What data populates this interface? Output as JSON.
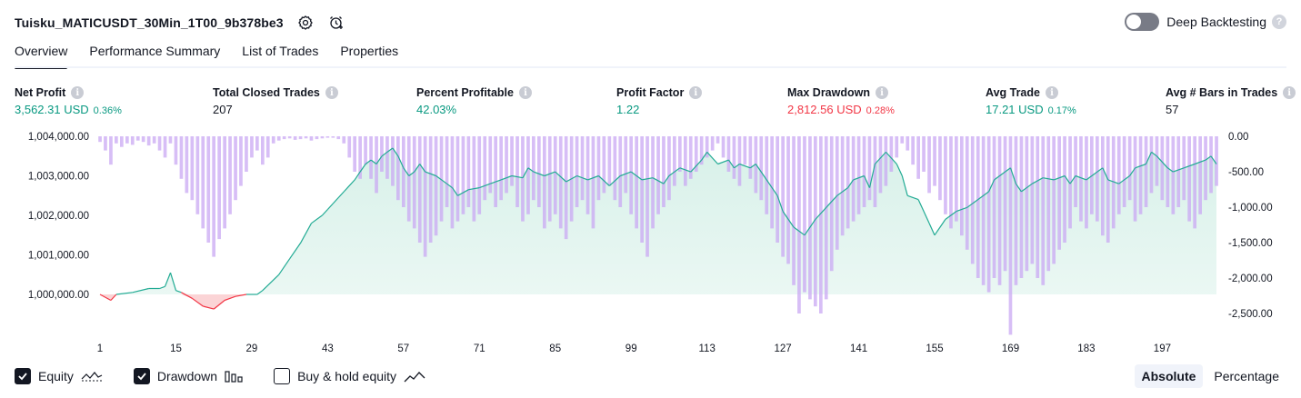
{
  "header": {
    "title": "Tuisku_MATICUSDT_30Min_1T00_9b378be3",
    "deep_backtesting_label": "Deep Backtesting",
    "help_glyph": "?"
  },
  "tabs": [
    {
      "label": "Overview",
      "active": true
    },
    {
      "label": "Performance Summary",
      "active": false
    },
    {
      "label": "List of Trades",
      "active": false
    },
    {
      "label": "Properties",
      "active": false
    }
  ],
  "metrics": [
    {
      "label": "Net Profit",
      "value": "3,562.31 USD",
      "pct": "0.36%",
      "color": "green"
    },
    {
      "label": "Total Closed Trades",
      "value": "207",
      "pct": "",
      "color": "dark"
    },
    {
      "label": "Percent Profitable",
      "value": "42.03%",
      "pct": "",
      "color": "green"
    },
    {
      "label": "Profit Factor",
      "value": "1.22",
      "pct": "",
      "color": "green"
    },
    {
      "label": "Max Drawdown",
      "value": "2,812.56 USD",
      "pct": "0.28%",
      "color": "red"
    },
    {
      "label": "Avg Trade",
      "value": "17.21 USD",
      "pct": "0.17%",
      "color": "green"
    },
    {
      "label": "Avg # Bars in Trades",
      "value": "57",
      "pct": "",
      "color": "dark"
    }
  ],
  "info_glyph": "i",
  "chart_data": {
    "type": "area",
    "x_ticks": [
      "1",
      "15",
      "29",
      "43",
      "57",
      "71",
      "85",
      "99",
      "113",
      "127",
      "141",
      "155",
      "169",
      "183",
      "197"
    ],
    "left_axis": {
      "ticks": [
        "1,004,000.00",
        "1,003,000.00",
        "1,002,000.00",
        "1,001,000.00",
        "1,000,000.00"
      ],
      "range": [
        999400,
        1004000
      ]
    },
    "right_axis": {
      "ticks": [
        "0.00",
        "-500.00",
        "-1,000.00",
        "-1,500.00",
        "-2,000.00",
        "-2,500.00"
      ],
      "range": [
        -2800,
        0
      ]
    },
    "equity_points": [
      [
        1,
        1000000
      ],
      [
        3,
        999850
      ],
      [
        4,
        1000000
      ],
      [
        7,
        1000050
      ],
      [
        10,
        1000150
      ],
      [
        12,
        1000150
      ],
      [
        13,
        1000200
      ],
      [
        14,
        1000550
      ],
      [
        15,
        1000100
      ],
      [
        16,
        1000050
      ],
      [
        18,
        999900
      ],
      [
        20,
        999700
      ],
      [
        22,
        999630
      ],
      [
        24,
        999850
      ],
      [
        26,
        999950
      ],
      [
        28,
        1000000
      ],
      [
        30,
        1000000
      ],
      [
        31,
        1000100
      ],
      [
        34,
        1000500
      ],
      [
        36,
        1000900
      ],
      [
        38,
        1001300
      ],
      [
        40,
        1001800
      ],
      [
        42,
        1002000
      ],
      [
        43,
        1002150
      ],
      [
        44,
        1002300
      ],
      [
        46,
        1002600
      ],
      [
        48,
        1002900
      ],
      [
        49,
        1003100
      ],
      [
        50,
        1003300
      ],
      [
        51,
        1003400
      ],
      [
        52,
        1003300
      ],
      [
        53,
        1003500
      ],
      [
        54,
        1003600
      ],
      [
        55,
        1003700
      ],
      [
        56,
        1003500
      ],
      [
        57,
        1003200
      ],
      [
        58,
        1003000
      ],
      [
        59,
        1003100
      ],
      [
        60,
        1003300
      ],
      [
        61,
        1003100
      ],
      [
        63,
        1003000
      ],
      [
        65,
        1002800
      ],
      [
        66,
        1002700
      ],
      [
        67,
        1002500
      ],
      [
        69,
        1002650
      ],
      [
        71,
        1002700
      ],
      [
        73,
        1002800
      ],
      [
        75,
        1002900
      ],
      [
        77,
        1003000
      ],
      [
        79,
        1002950
      ],
      [
        80,
        1003200
      ],
      [
        81,
        1003100
      ],
      [
        83,
        1003000
      ],
      [
        85,
        1003100
      ],
      [
        87,
        1002850
      ],
      [
        89,
        1003000
      ],
      [
        91,
        1002900
      ],
      [
        93,
        1003000
      ],
      [
        95,
        1002750
      ],
      [
        97,
        1003000
      ],
      [
        99,
        1003100
      ],
      [
        101,
        1002900
      ],
      [
        103,
        1002950
      ],
      [
        105,
        1002800
      ],
      [
        106,
        1003000
      ],
      [
        108,
        1003200
      ],
      [
        110,
        1003100
      ],
      [
        112,
        1003400
      ],
      [
        113,
        1003600
      ],
      [
        115,
        1003300
      ],
      [
        117,
        1003400
      ],
      [
        118,
        1003200
      ],
      [
        119,
        1003300
      ],
      [
        121,
        1003200
      ],
      [
        122,
        1003300
      ],
      [
        124,
        1002900
      ],
      [
        126,
        1002500
      ],
      [
        127,
        1002100
      ],
      [
        129,
        1001700
      ],
      [
        131,
        1001500
      ],
      [
        133,
        1001900
      ],
      [
        135,
        1002200
      ],
      [
        137,
        1002500
      ],
      [
        139,
        1002700
      ],
      [
        140,
        1002900
      ],
      [
        142,
        1003000
      ],
      [
        143,
        1002700
      ],
      [
        144,
        1003300
      ],
      [
        146,
        1003600
      ],
      [
        148,
        1003300
      ],
      [
        149,
        1003000
      ],
      [
        150,
        1002500
      ],
      [
        152,
        1002400
      ],
      [
        154,
        1001800
      ],
      [
        155,
        1001500
      ],
      [
        157,
        1001900
      ],
      [
        159,
        1002100
      ],
      [
        161,
        1002200
      ],
      [
        163,
        1002400
      ],
      [
        165,
        1002600
      ],
      [
        166,
        1002900
      ],
      [
        168,
        1003100
      ],
      [
        169,
        1003200
      ],
      [
        170,
        1002800
      ],
      [
        171,
        1002600
      ],
      [
        173,
        1002800
      ],
      [
        175,
        1002950
      ],
      [
        177,
        1002900
      ],
      [
        179,
        1003000
      ],
      [
        180,
        1002800
      ],
      [
        181,
        1003000
      ],
      [
        183,
        1002900
      ],
      [
        185,
        1003100
      ],
      [
        186,
        1003200
      ],
      [
        187,
        1002900
      ],
      [
        189,
        1002800
      ],
      [
        191,
        1003000
      ],
      [
        192,
        1003200
      ],
      [
        194,
        1003300
      ],
      [
        195,
        1003600
      ],
      [
        196,
        1003500
      ],
      [
        198,
        1003200
      ],
      [
        199,
        1003100
      ],
      [
        201,
        1003200
      ],
      [
        203,
        1003300
      ],
      [
        205,
        1003400
      ],
      [
        206,
        1003500
      ],
      [
        207,
        1003300
      ]
    ],
    "drawdown_points": [
      [
        1,
        -80
      ],
      [
        2,
        -200
      ],
      [
        3,
        -400
      ],
      [
        4,
        -100
      ],
      [
        5,
        -150
      ],
      [
        6,
        -100
      ],
      [
        7,
        -120
      ],
      [
        8,
        -60
      ],
      [
        9,
        -80
      ],
      [
        10,
        -130
      ],
      [
        11,
        -100
      ],
      [
        12,
        -200
      ],
      [
        13,
        -300
      ],
      [
        14,
        -100
      ],
      [
        15,
        -400
      ],
      [
        16,
        -600
      ],
      [
        17,
        -800
      ],
      [
        18,
        -900
      ],
      [
        19,
        -1100
      ],
      [
        20,
        -1300
      ],
      [
        21,
        -1500
      ],
      [
        22,
        -1700
      ],
      [
        23,
        -1450
      ],
      [
        24,
        -1300
      ],
      [
        25,
        -1100
      ],
      [
        26,
        -900
      ],
      [
        27,
        -700
      ],
      [
        28,
        -500
      ],
      [
        29,
        -300
      ],
      [
        30,
        -200
      ],
      [
        31,
        -400
      ],
      [
        32,
        -300
      ],
      [
        33,
        -100
      ],
      [
        34,
        -60
      ],
      [
        35,
        -40
      ],
      [
        36,
        -30
      ],
      [
        37,
        -50
      ],
      [
        38,
        -40
      ],
      [
        39,
        -30
      ],
      [
        40,
        -60
      ],
      [
        41,
        -40
      ],
      [
        42,
        -30
      ],
      [
        43,
        -20
      ],
      [
        44,
        -20
      ],
      [
        45,
        -40
      ],
      [
        46,
        -100
      ],
      [
        47,
        -300
      ],
      [
        48,
        -500
      ],
      [
        49,
        -600
      ],
      [
        50,
        -400
      ],
      [
        51,
        -600
      ],
      [
        52,
        -800
      ],
      [
        53,
        -500
      ],
      [
        54,
        -600
      ],
      [
        55,
        -700
      ],
      [
        56,
        -900
      ],
      [
        57,
        -1000
      ],
      [
        58,
        -1200
      ],
      [
        59,
        -1300
      ],
      [
        60,
        -1500
      ],
      [
        61,
        -1700
      ],
      [
        62,
        -1500
      ],
      [
        63,
        -1400
      ],
      [
        64,
        -1200
      ],
      [
        65,
        -1000
      ],
      [
        66,
        -1300
      ],
      [
        67,
        -1200
      ],
      [
        68,
        -1100
      ],
      [
        69,
        -1000
      ],
      [
        70,
        -1200
      ],
      [
        71,
        -1100
      ],
      [
        72,
        -900
      ],
      [
        73,
        -800
      ],
      [
        74,
        -1000
      ],
      [
        75,
        -900
      ],
      [
        76,
        -800
      ],
      [
        77,
        -700
      ],
      [
        78,
        -1000
      ],
      [
        79,
        -1200
      ],
      [
        80,
        -1100
      ],
      [
        81,
        -900
      ],
      [
        82,
        -1000
      ],
      [
        83,
        -1300
      ],
      [
        84,
        -1200
      ],
      [
        85,
        -1100
      ],
      [
        86,
        -1300
      ],
      [
        87,
        -1450
      ],
      [
        88,
        -1200
      ],
      [
        89,
        -1000
      ],
      [
        90,
        -900
      ],
      [
        91,
        -1100
      ],
      [
        92,
        -1300
      ],
      [
        93,
        -900
      ],
      [
        94,
        -800
      ],
      [
        95,
        -700
      ],
      [
        96,
        -900
      ],
      [
        97,
        -1000
      ],
      [
        98,
        -800
      ],
      [
        99,
        -1100
      ],
      [
        100,
        -1300
      ],
      [
        101,
        -1500
      ],
      [
        102,
        -1700
      ],
      [
        103,
        -1300
      ],
      [
        104,
        -1100
      ],
      [
        105,
        -1000
      ],
      [
        106,
        -900
      ],
      [
        107,
        -700
      ],
      [
        108,
        -500
      ],
      [
        109,
        -700
      ],
      [
        110,
        -600
      ],
      [
        111,
        -500
      ],
      [
        112,
        -400
      ],
      [
        113,
        -300
      ],
      [
        114,
        -200
      ],
      [
        115,
        -100
      ],
      [
        116,
        -300
      ],
      [
        117,
        -500
      ],
      [
        118,
        -600
      ],
      [
        119,
        -700
      ],
      [
        120,
        -400
      ],
      [
        121,
        -600
      ],
      [
        122,
        -800
      ],
      [
        123,
        -900
      ],
      [
        124,
        -1100
      ],
      [
        125,
        -1300
      ],
      [
        126,
        -1500
      ],
      [
        127,
        -1700
      ],
      [
        128,
        -1800
      ],
      [
        129,
        -2100
      ],
      [
        130,
        -2500
      ],
      [
        131,
        -2200
      ],
      [
        132,
        -2300
      ],
      [
        133,
        -2400
      ],
      [
        134,
        -2500
      ],
      [
        135,
        -2300
      ],
      [
        136,
        -1900
      ],
      [
        137,
        -1600
      ],
      [
        138,
        -1400
      ],
      [
        139,
        -1300
      ],
      [
        140,
        -1200
      ],
      [
        141,
        -1100
      ],
      [
        142,
        -1000
      ],
      [
        143,
        -900
      ],
      [
        144,
        -1000
      ],
      [
        145,
        -800
      ],
      [
        146,
        -700
      ],
      [
        147,
        -500
      ],
      [
        148,
        -300
      ],
      [
        149,
        -100
      ],
      [
        150,
        -200
      ],
      [
        151,
        -400
      ],
      [
        152,
        -600
      ],
      [
        153,
        -500
      ],
      [
        154,
        -800
      ],
      [
        155,
        -700
      ],
      [
        156,
        -900
      ],
      [
        157,
        -1100
      ],
      [
        158,
        -1300
      ],
      [
        159,
        -1200
      ],
      [
        160,
        -1400
      ],
      [
        161,
        -1600
      ],
      [
        162,
        -1800
      ],
      [
        163,
        -2000
      ],
      [
        164,
        -2100
      ],
      [
        165,
        -2200
      ],
      [
        166,
        -2000
      ],
      [
        167,
        -2100
      ],
      [
        168,
        -1900
      ],
      [
        169,
        -2800
      ],
      [
        170,
        -2100
      ],
      [
        171,
        -2000
      ],
      [
        172,
        -1900
      ],
      [
        173,
        -1800
      ],
      [
        174,
        -2000
      ],
      [
        175,
        -2100
      ],
      [
        176,
        -1900
      ],
      [
        177,
        -1800
      ],
      [
        178,
        -1600
      ],
      [
        179,
        -1500
      ],
      [
        180,
        -1300
      ],
      [
        181,
        -1000
      ],
      [
        182,
        -1200
      ],
      [
        183,
        -1300
      ],
      [
        184,
        -1100
      ],
      [
        185,
        -1200
      ],
      [
        186,
        -1400
      ],
      [
        187,
        -1500
      ],
      [
        188,
        -1300
      ],
      [
        189,
        -1100
      ],
      [
        190,
        -1000
      ],
      [
        191,
        -900
      ],
      [
        192,
        -1200
      ],
      [
        193,
        -1100
      ],
      [
        194,
        -1000
      ],
      [
        195,
        -800
      ],
      [
        196,
        -700
      ],
      [
        197,
        -900
      ],
      [
        198,
        -1000
      ],
      [
        199,
        -1100
      ],
      [
        200,
        -1000
      ],
      [
        201,
        -900
      ],
      [
        202,
        -1200
      ],
      [
        203,
        -1300
      ],
      [
        204,
        -1100
      ],
      [
        205,
        -900
      ],
      [
        206,
        -800
      ],
      [
        207,
        -700
      ]
    ],
    "colors": {
      "equity_line": "#22ab94",
      "equity_fill": "#d6f0e8",
      "below_line": "#f23645",
      "below_fill": "#fbd4d6",
      "drawdown_bar": "#c9a8f3"
    }
  },
  "legend": [
    {
      "label": "Equity",
      "checked": true,
      "icon": "equity-line-icon"
    },
    {
      "label": "Drawdown",
      "checked": true,
      "icon": "drawdown-bars-icon"
    },
    {
      "label": "Buy & hold equity",
      "checked": false,
      "icon": "buy-hold-line-icon"
    }
  ],
  "mode": {
    "absolute": "Absolute",
    "percentage": "Percentage"
  }
}
